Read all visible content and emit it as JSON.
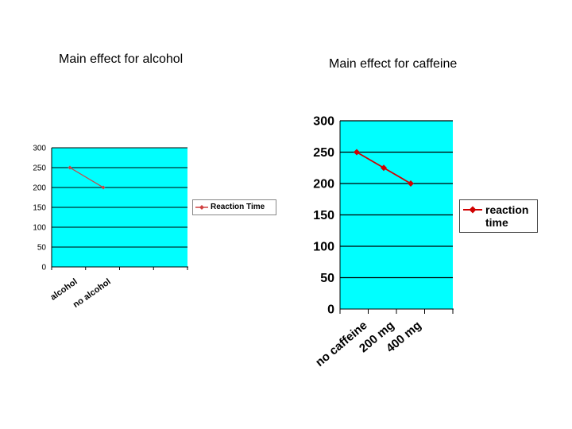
{
  "chart_data": [
    {
      "type": "line",
      "title": "Main effect for alcohol",
      "categories": [
        "alcohol",
        "no alcohol"
      ],
      "series": [
        {
          "name": "Reaction Time",
          "values": [
            250,
            200
          ]
        }
      ],
      "ylim": [
        0,
        300
      ],
      "yticks": [
        0,
        50,
        100,
        150,
        200,
        250,
        300
      ],
      "grid": true,
      "legend": "right",
      "colors": {
        "plot_bg": "#00FFFF",
        "line": "#D04040",
        "marker": "#D04040"
      }
    },
    {
      "type": "line",
      "title": "Main effect for caffeine",
      "categories": [
        "no caffeine",
        "200 mg",
        "400 mg"
      ],
      "series": [
        {
          "name": "reaction time",
          "values": [
            250,
            225,
            200
          ]
        }
      ],
      "ylim": [
        0,
        300
      ],
      "yticks": [
        0,
        50,
        100,
        150,
        200,
        250,
        300
      ],
      "grid": true,
      "legend": "right",
      "colors": {
        "plot_bg": "#00FFFF",
        "line": "#D00000",
        "marker": "#D00000"
      }
    }
  ]
}
